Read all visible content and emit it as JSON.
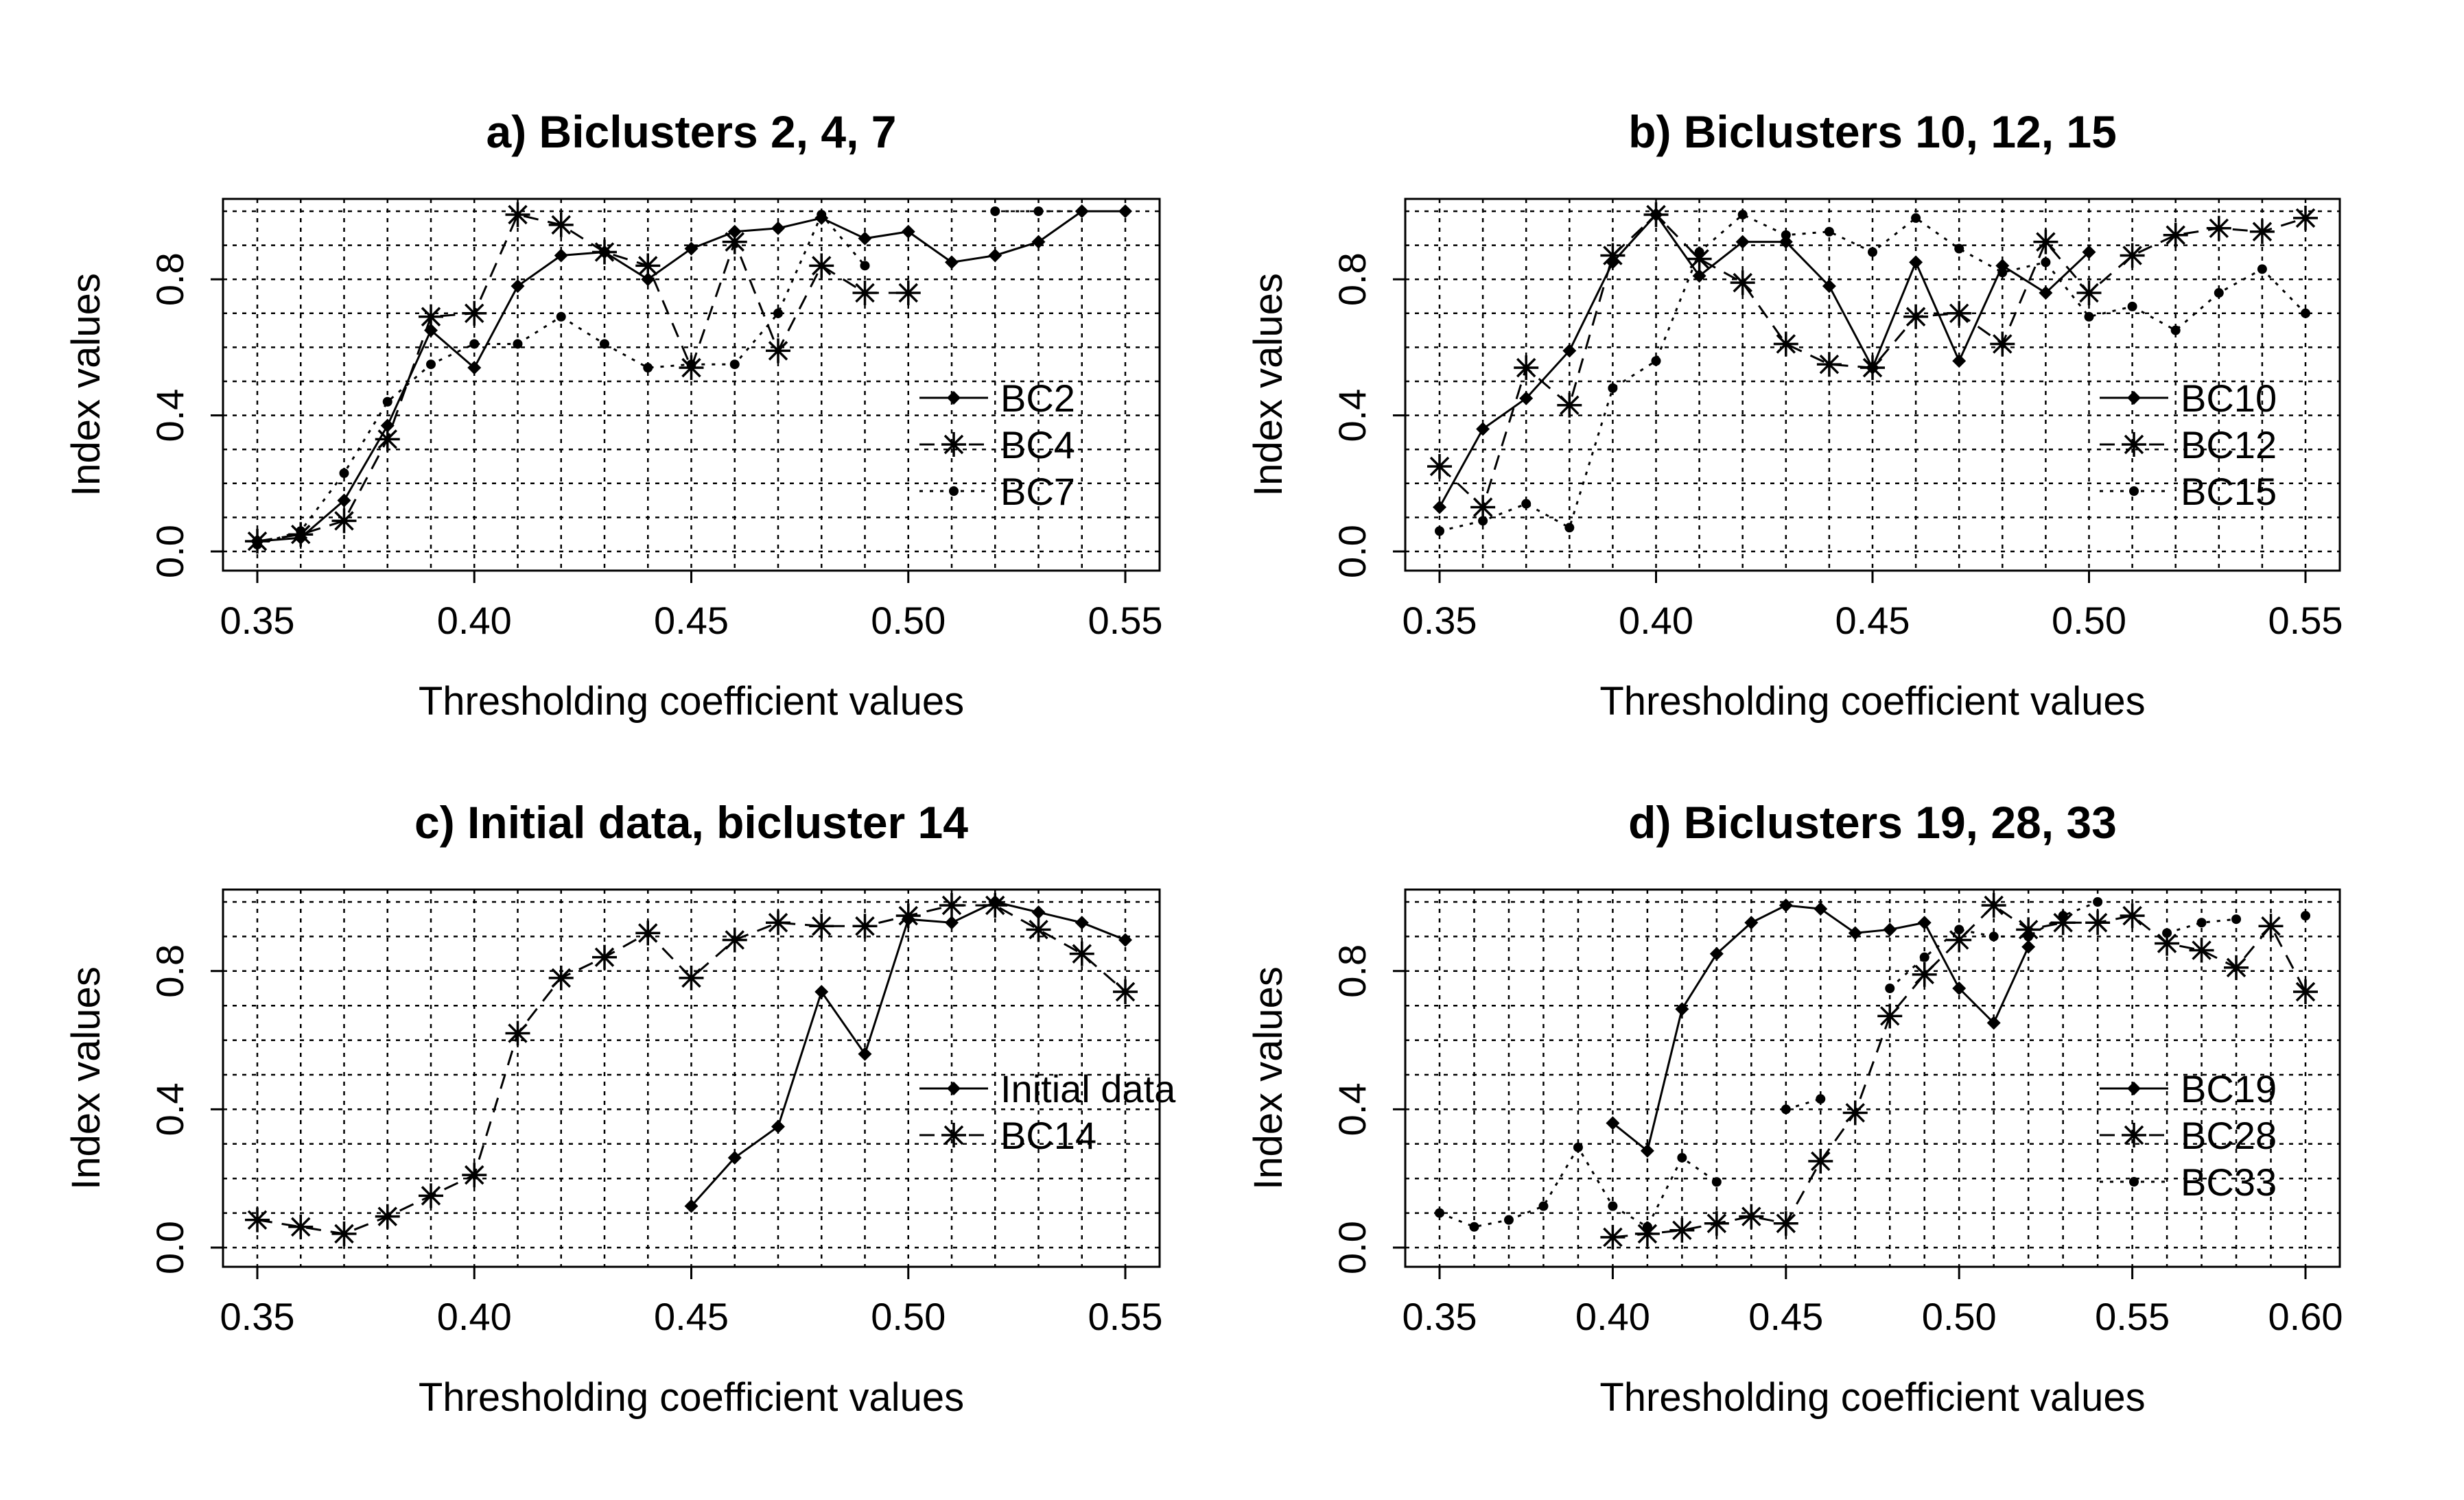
{
  "figure": {
    "background": "#ffffff",
    "ink": "#000000"
  },
  "chart_data": [
    {
      "type": "line",
      "title": "a) Biclusters 2, 4, 7",
      "xlabel": "Thresholding coefficient values",
      "ylabel": "Index values",
      "xlim": [
        0.35,
        0.55
      ],
      "ylim": [
        0,
        1
      ],
      "xticks": [
        "0.35",
        "0.40",
        "0.45",
        "0.50",
        "0.55"
      ],
      "yticks": [
        "0.0",
        "0.4",
        "0.8"
      ],
      "grid": true,
      "legend_position": "right",
      "x": [
        0.35,
        0.36,
        0.37,
        0.38,
        0.39,
        0.4,
        0.41,
        0.42,
        0.43,
        0.44,
        0.45,
        0.46,
        0.47,
        0.48,
        0.49,
        0.5,
        0.51,
        0.52,
        0.53,
        0.54,
        0.55
      ],
      "series": [
        {
          "name": "BC2",
          "line": "solid",
          "marker": "diamond",
          "values": [
            0.03,
            0.04,
            0.15,
            0.37,
            0.65,
            0.54,
            0.78,
            0.87,
            0.88,
            0.8,
            0.89,
            0.94,
            0.95,
            0.98,
            0.92,
            0.94,
            0.85,
            0.87,
            0.91,
            1.0,
            1.0
          ]
        },
        {
          "name": "BC4",
          "line": "dashed",
          "marker": "star",
          "values": [
            0.03,
            0.05,
            0.09,
            0.33,
            0.69,
            0.7,
            0.99,
            0.96,
            0.88,
            0.84,
            0.54,
            0.91,
            0.59,
            0.84,
            0.76,
            0.76,
            null,
            null,
            null,
            null,
            null
          ]
        },
        {
          "name": "BC7",
          "line": "dotted",
          "marker": "dot",
          "values": [
            0.02,
            0.06,
            0.23,
            0.44,
            0.55,
            0.61,
            0.61,
            0.69,
            0.61,
            0.54,
            0.55,
            0.55,
            0.7,
            0.99,
            0.84,
            null,
            null,
            1.0,
            1.0,
            1.0,
            1.0
          ]
        }
      ]
    },
    {
      "type": "line",
      "title": "b) Biclusters 10, 12, 15",
      "xlabel": "Thresholding coefficient values",
      "ylabel": "Index values",
      "xlim": [
        0.35,
        0.55
      ],
      "ylim": [
        0,
        1
      ],
      "xticks": [
        "0.35",
        "0.40",
        "0.45",
        "0.50",
        "0.55"
      ],
      "yticks": [
        "0.0",
        "0.4",
        "0.8"
      ],
      "grid": true,
      "legend_position": "right",
      "x": [
        0.35,
        0.36,
        0.37,
        0.38,
        0.39,
        0.4,
        0.41,
        0.42,
        0.43,
        0.44,
        0.45,
        0.46,
        0.47,
        0.48,
        0.49,
        0.5,
        0.51,
        0.52,
        0.53,
        0.54,
        0.55
      ],
      "series": [
        {
          "name": "BC10",
          "line": "solid",
          "marker": "diamond",
          "values": [
            0.13,
            0.36,
            0.45,
            0.59,
            0.85,
            0.99,
            0.81,
            0.91,
            0.91,
            0.78,
            0.54,
            0.85,
            0.56,
            0.84,
            0.76,
            0.88,
            null,
            null,
            null,
            null,
            null
          ]
        },
        {
          "name": "BC12",
          "line": "dashed",
          "marker": "star",
          "values": [
            0.25,
            0.13,
            0.54,
            0.43,
            0.87,
            0.99,
            0.86,
            0.79,
            0.61,
            0.55,
            0.54,
            0.69,
            0.7,
            0.61,
            0.91,
            0.76,
            0.87,
            0.93,
            0.95,
            0.94,
            0.98
          ]
        },
        {
          "name": "BC15",
          "line": "dotted",
          "marker": "dot",
          "values": [
            0.06,
            0.09,
            0.14,
            0.07,
            0.48,
            0.56,
            0.88,
            0.99,
            0.93,
            0.94,
            0.88,
            0.98,
            0.89,
            0.82,
            0.85,
            0.69,
            0.72,
            0.65,
            0.76,
            0.83,
            0.7
          ]
        }
      ]
    },
    {
      "type": "line",
      "title": "c) Initial data, bicluster 14",
      "xlabel": "Thresholding coefficient values",
      "ylabel": "Index values",
      "xlim": [
        0.35,
        0.55
      ],
      "ylim": [
        0,
        1
      ],
      "xticks": [
        "0.35",
        "0.40",
        "0.45",
        "0.50",
        "0.55"
      ],
      "yticks": [
        "0.0",
        "0.4",
        "0.8"
      ],
      "grid": true,
      "legend_position": "right",
      "x": [
        0.35,
        0.36,
        0.37,
        0.38,
        0.39,
        0.4,
        0.41,
        0.42,
        0.43,
        0.44,
        0.45,
        0.46,
        0.47,
        0.48,
        0.49,
        0.5,
        0.51,
        0.52,
        0.53,
        0.54,
        0.55
      ],
      "series": [
        {
          "name": "Initial data",
          "line": "solid",
          "marker": "diamond",
          "values": [
            null,
            null,
            null,
            null,
            null,
            null,
            null,
            null,
            null,
            null,
            0.12,
            0.26,
            0.35,
            0.74,
            0.56,
            0.95,
            0.94,
            1.0,
            0.97,
            0.94,
            0.89
          ]
        },
        {
          "name": "BC14",
          "line": "dashed",
          "marker": "star",
          "values": [
            0.08,
            0.06,
            0.04,
            0.09,
            0.15,
            0.21,
            0.62,
            0.78,
            0.84,
            0.91,
            0.78,
            0.89,
            0.94,
            0.93,
            0.93,
            0.96,
            0.99,
            0.99,
            0.92,
            0.85,
            0.74
          ]
        }
      ]
    },
    {
      "type": "line",
      "title": "d) Biclusters 19, 28, 33",
      "xlabel": "Thresholding coefficient values",
      "ylabel": "Index values",
      "xlim": [
        0.35,
        0.6
      ],
      "ylim": [
        0,
        1
      ],
      "xticks": [
        "0.35",
        "0.40",
        "0.45",
        "0.50",
        "0.55",
        "0.60"
      ],
      "yticks": [
        "0.0",
        "0.4",
        "0.8"
      ],
      "grid": true,
      "legend_position": "right",
      "x": [
        0.35,
        0.36,
        0.37,
        0.38,
        0.39,
        0.4,
        0.41,
        0.42,
        0.43,
        0.44,
        0.45,
        0.46,
        0.47,
        0.48,
        0.49,
        0.5,
        0.51,
        0.52,
        0.53,
        0.54,
        0.55,
        0.56,
        0.57,
        0.58,
        0.59,
        0.6
      ],
      "series": [
        {
          "name": "BC19",
          "line": "solid",
          "marker": "diamond",
          "values": [
            null,
            null,
            null,
            null,
            null,
            0.36,
            0.28,
            0.69,
            0.85,
            0.94,
            0.99,
            0.98,
            0.91,
            0.92,
            0.94,
            0.75,
            0.65,
            0.87,
            null,
            null,
            null,
            null,
            null,
            null,
            null,
            null
          ]
        },
        {
          "name": "BC28",
          "line": "dashed",
          "marker": "star",
          "values": [
            null,
            null,
            null,
            null,
            null,
            0.03,
            0.04,
            0.05,
            0.07,
            0.09,
            0.07,
            0.25,
            0.39,
            0.67,
            0.79,
            0.89,
            0.99,
            0.92,
            0.94,
            0.94,
            0.96,
            0.88,
            0.86,
            0.81,
            0.93,
            0.74
          ]
        },
        {
          "name": "BC33",
          "line": "dotted",
          "marker": "dot",
          "values": [
            0.1,
            0.06,
            0.08,
            0.12,
            0.29,
            0.12,
            0.06,
            0.26,
            0.19,
            null,
            0.4,
            0.43,
            null,
            0.75,
            0.84,
            0.92,
            0.9,
            0.9,
            0.96,
            1.0,
            null,
            0.91,
            0.94,
            0.95,
            null,
            0.96
          ]
        }
      ]
    }
  ]
}
